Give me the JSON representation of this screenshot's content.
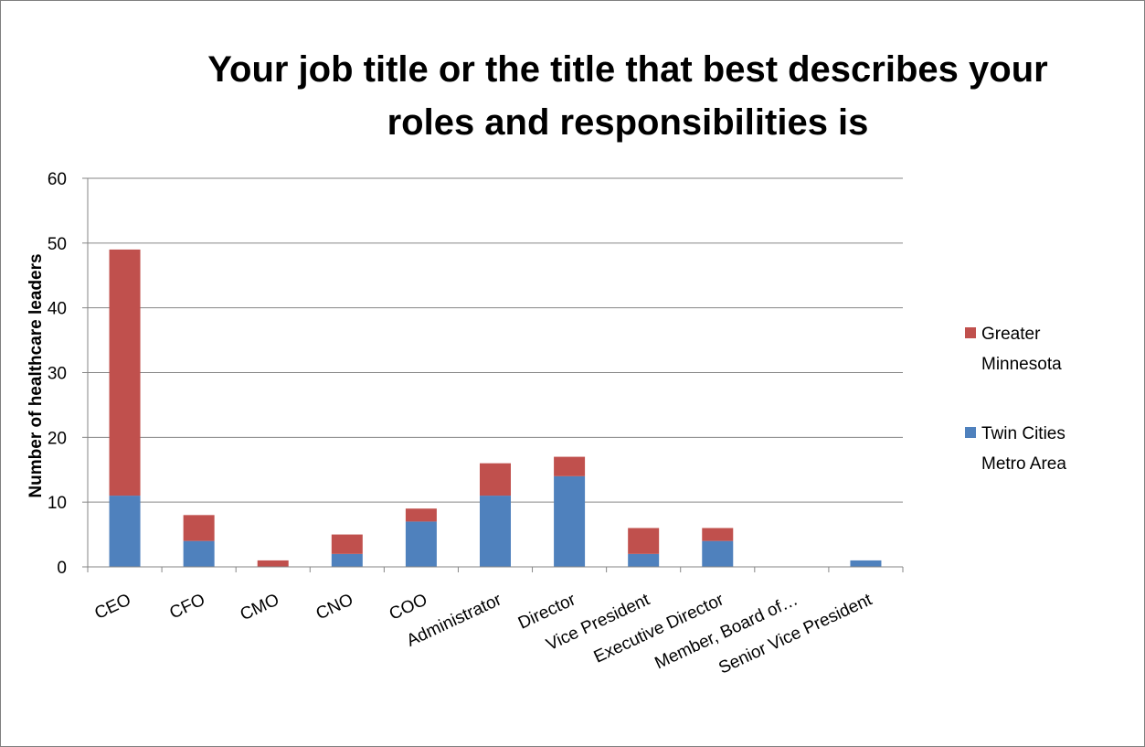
{
  "chart_data": {
    "type": "bar",
    "stacked": true,
    "title": "Your job title or the title that best describes your roles and responsibilities is",
    "title_lines": [
      "Your job title or the title that best describes your",
      "roles and responsibilities is"
    ],
    "xlabel": "",
    "ylabel": "Number of healthcare leaders",
    "ylim": [
      0,
      60
    ],
    "yticks": [
      0,
      10,
      20,
      30,
      40,
      50,
      60
    ],
    "grid": true,
    "legend_position": "right",
    "categories": [
      "CEO",
      "CFO",
      "CMO",
      "CNO",
      "COO",
      "Administrator",
      "Director",
      "Vice President",
      "Executive Director",
      "Member, Board of…",
      "Senior Vice President"
    ],
    "series": [
      {
        "name": "Twin Cities Metro Area",
        "color": "#4f81bd",
        "values": [
          11,
          4,
          0,
          2,
          7,
          11,
          14,
          2,
          4,
          0,
          1
        ]
      },
      {
        "name": "Greater Minnesota",
        "color": "#c0504d",
        "values": [
          38,
          4,
          1,
          3,
          2,
          5,
          3,
          4,
          2,
          0,
          0
        ]
      }
    ],
    "legend": [
      {
        "lines": [
          "Greater",
          "Minnesota"
        ],
        "color": "#c0504d"
      },
      {
        "lines": [
          "Twin Cities",
          "Metro Area"
        ],
        "color": "#4f81bd"
      }
    ]
  }
}
